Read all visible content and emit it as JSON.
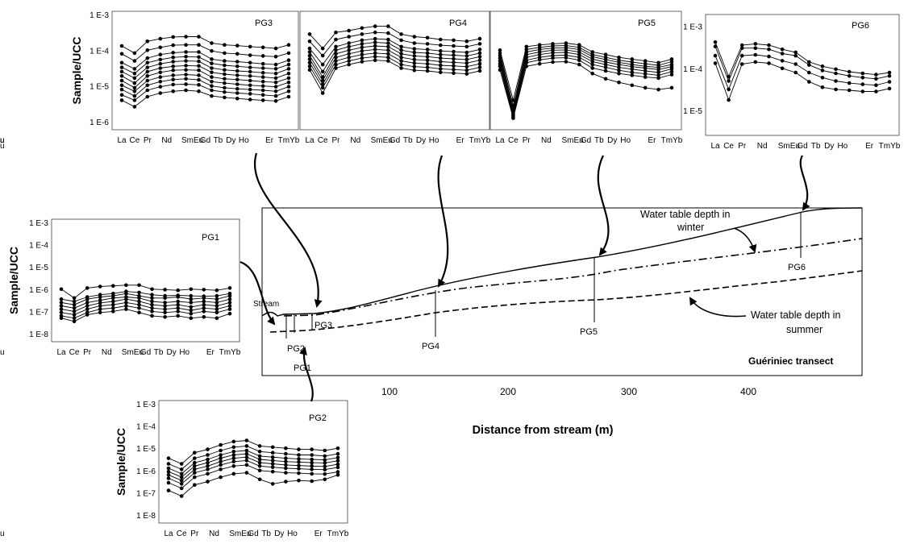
{
  "elements": [
    "La",
    "Ce",
    "Pr",
    "Nd",
    "Sm",
    "Eu",
    "Gd",
    "Tb",
    "Dy",
    "Ho",
    "Er",
    "Tm",
    "Yb",
    "Lu"
  ],
  "tick_labels": [
    "La",
    "Ce",
    "Pr",
    "Nd",
    "SmEu",
    "Gd",
    "Tb",
    "Dy",
    "Ho",
    "Er",
    "TmYb",
    "Lu"
  ],
  "y_axis_label": "Sample/UCC",
  "panels": [
    {
      "id": "PG3",
      "label": "PG3",
      "y_ticks": [
        "1 E-3",
        "1 E-4",
        "1 E-5",
        "1 E-6"
      ],
      "y_range_log10": [
        -6,
        -3
      ],
      "show_ylabel": true,
      "series": [
        [
          -3.88,
          -4.08,
          -3.75,
          -3.68,
          -3.63,
          -3.62,
          -3.62,
          -3.8,
          -3.85,
          -3.87,
          -3.9,
          -3.92,
          -3.95,
          -3.85
        ],
        [
          -4.1,
          -4.3,
          -4.0,
          -3.92,
          -3.86,
          -3.85,
          -3.85,
          -4.02,
          -4.08,
          -4.1,
          -4.14,
          -4.16,
          -4.18,
          -4.08
        ],
        [
          -4.35,
          -4.52,
          -4.22,
          -4.12,
          -4.07,
          -4.05,
          -4.05,
          -4.25,
          -4.3,
          -4.32,
          -4.35,
          -4.38,
          -4.4,
          -4.28
        ],
        [
          -4.48,
          -4.65,
          -4.35,
          -4.26,
          -4.2,
          -4.18,
          -4.19,
          -4.37,
          -4.42,
          -4.45,
          -4.48,
          -4.5,
          -4.52,
          -4.4
        ],
        [
          -4.6,
          -4.78,
          -4.48,
          -4.38,
          -4.32,
          -4.3,
          -4.31,
          -4.5,
          -4.55,
          -4.58,
          -4.6,
          -4.63,
          -4.65,
          -4.52
        ],
        [
          -4.72,
          -4.92,
          -4.6,
          -4.5,
          -4.45,
          -4.43,
          -4.44,
          -4.62,
          -4.67,
          -4.7,
          -4.72,
          -4.75,
          -4.78,
          -4.65
        ],
        [
          -4.85,
          -5.05,
          -4.72,
          -4.62,
          -4.56,
          -4.55,
          -4.56,
          -4.75,
          -4.8,
          -4.82,
          -4.85,
          -4.88,
          -4.9,
          -4.78
        ],
        [
          -4.98,
          -5.15,
          -4.85,
          -4.75,
          -4.7,
          -4.68,
          -4.7,
          -4.88,
          -4.92,
          -4.95,
          -4.98,
          -5.0,
          -5.02,
          -4.9
        ],
        [
          -5.1,
          -5.28,
          -4.98,
          -4.88,
          -4.82,
          -4.8,
          -4.83,
          -5.0,
          -5.05,
          -5.08,
          -5.1,
          -5.12,
          -5.15,
          -5.02
        ],
        [
          -5.25,
          -5.4,
          -5.12,
          -5.02,
          -4.96,
          -4.95,
          -4.97,
          -5.12,
          -5.17,
          -5.2,
          -5.22,
          -5.25,
          -5.28,
          -5.15
        ],
        [
          -5.4,
          -5.58,
          -5.3,
          -5.2,
          -5.15,
          -5.12,
          -5.15,
          -5.28,
          -5.32,
          -5.35,
          -5.38,
          -5.4,
          -5.42,
          -5.3
        ]
      ]
    },
    {
      "id": "PG4",
      "label": "PG4",
      "y_ticks": [],
      "y_range_log10": [
        -6,
        -3
      ],
      "show_ylabel": false,
      "series": [
        [
          -3.55,
          -3.95,
          -3.5,
          -3.45,
          -3.38,
          -3.33,
          -3.33,
          -3.55,
          -3.62,
          -3.65,
          -3.7,
          -3.72,
          -3.75,
          -3.68
        ],
        [
          -3.75,
          -4.15,
          -3.7,
          -3.62,
          -3.55,
          -3.5,
          -3.52,
          -3.72,
          -3.8,
          -3.82,
          -3.86,
          -3.88,
          -3.9,
          -3.82
        ],
        [
          -3.95,
          -4.4,
          -3.9,
          -3.8,
          -3.72,
          -3.68,
          -3.7,
          -3.9,
          -3.96,
          -3.98,
          -4.02,
          -4.04,
          -4.06,
          -3.98
        ],
        [
          -4.05,
          -4.6,
          -4.0,
          -3.9,
          -3.82,
          -3.78,
          -3.8,
          -4.0,
          -4.06,
          -4.08,
          -4.12,
          -4.14,
          -4.16,
          -4.08
        ],
        [
          -4.15,
          -4.75,
          -4.1,
          -4.0,
          -3.92,
          -3.88,
          -3.9,
          -4.1,
          -4.16,
          -4.18,
          -4.22,
          -4.24,
          -4.26,
          -4.18
        ],
        [
          -4.25,
          -4.85,
          -4.2,
          -4.1,
          -4.02,
          -3.98,
          -4.0,
          -4.2,
          -4.26,
          -4.28,
          -4.32,
          -4.34,
          -4.36,
          -4.28
        ],
        [
          -4.35,
          -4.95,
          -4.3,
          -4.2,
          -4.12,
          -4.08,
          -4.1,
          -4.3,
          -4.36,
          -4.38,
          -4.42,
          -4.44,
          -4.46,
          -4.38
        ],
        [
          -4.45,
          -5.05,
          -4.4,
          -4.3,
          -4.22,
          -4.18,
          -4.2,
          -4.4,
          -4.46,
          -4.48,
          -4.52,
          -4.54,
          -4.56,
          -4.48
        ],
        [
          -4.55,
          -5.2,
          -4.5,
          -4.4,
          -4.32,
          -4.28,
          -4.3,
          -4.5,
          -4.56,
          -4.58,
          -4.62,
          -4.64,
          -4.66,
          -4.58
        ]
      ]
    },
    {
      "id": "PG5",
      "label": "PG5",
      "y_ticks": [],
      "y_range_log10": [
        -6,
        -3
      ],
      "show_ylabel": false,
      "series": [
        [
          -4.0,
          -5.4,
          -3.9,
          -3.85,
          -3.82,
          -3.8,
          -3.85,
          -4.05,
          -4.12,
          -4.2,
          -4.25,
          -4.3,
          -4.35,
          -4.25
        ],
        [
          -4.08,
          -5.55,
          -3.98,
          -3.92,
          -3.88,
          -3.87,
          -3.92,
          -4.12,
          -4.2,
          -4.28,
          -4.33,
          -4.38,
          -4.42,
          -4.32
        ],
        [
          -4.15,
          -5.65,
          -4.05,
          -3.98,
          -3.94,
          -3.93,
          -3.98,
          -4.18,
          -4.26,
          -4.34,
          -4.4,
          -4.45,
          -4.48,
          -4.4
        ],
        [
          -4.22,
          -5.72,
          -4.12,
          -4.05,
          -4.0,
          -3.99,
          -4.05,
          -4.25,
          -4.33,
          -4.4,
          -4.46,
          -4.5,
          -4.54,
          -4.46
        ],
        [
          -4.3,
          -5.78,
          -4.2,
          -4.12,
          -4.07,
          -4.06,
          -4.12,
          -4.32,
          -4.4,
          -4.48,
          -4.53,
          -4.58,
          -4.62,
          -4.52
        ],
        [
          -4.38,
          -5.82,
          -4.28,
          -4.2,
          -4.15,
          -4.14,
          -4.2,
          -4.4,
          -4.48,
          -4.56,
          -4.62,
          -4.66,
          -4.7,
          -4.6
        ],
        [
          -4.45,
          -5.86,
          -4.35,
          -4.27,
          -4.22,
          -4.21,
          -4.28,
          -4.5,
          -4.58,
          -4.65,
          -4.7,
          -4.75,
          -4.78,
          -4.68
        ],
        [
          -4.55,
          -5.9,
          -4.45,
          -4.38,
          -4.33,
          -4.32,
          -4.4,
          -4.65,
          -4.8,
          -4.9,
          -4.98,
          -5.05,
          -5.1,
          -5.05
        ]
      ]
    },
    {
      "id": "PG6",
      "label": "PG6",
      "y_ticks": [
        "1 E-3",
        "1 E-4",
        "1 E-5"
      ],
      "y_range_log10": [
        -5.4,
        -2.8
      ],
      "show_ylabel": false,
      "series": [
        [
          -3.38,
          -4.2,
          -3.45,
          -3.42,
          -3.45,
          -3.55,
          -3.62,
          -3.85,
          -3.95,
          -4.02,
          -4.08,
          -4.12,
          -4.15,
          -4.1
        ],
        [
          -3.48,
          -4.3,
          -3.52,
          -3.52,
          -3.55,
          -3.65,
          -3.7,
          -3.92,
          -4.05,
          -4.12,
          -4.18,
          -4.22,
          -4.25,
          -4.18
        ],
        [
          -3.7,
          -4.5,
          -3.7,
          -3.68,
          -3.72,
          -3.82,
          -3.9,
          -4.1,
          -4.22,
          -4.3,
          -4.35,
          -4.38,
          -4.4,
          -4.32
        ],
        [
          -3.88,
          -4.75,
          -3.9,
          -3.85,
          -3.88,
          -4.0,
          -4.1,
          -4.32,
          -4.45,
          -4.5,
          -4.52,
          -4.55,
          -4.55,
          -4.48
        ]
      ]
    },
    {
      "id": "PG1",
      "label": "PG1",
      "y_ticks": [
        "1 E-3",
        "1 E-4",
        "1 E-5",
        "1 E-6",
        "1 E-7",
        "1 E-8"
      ],
      "y_range_log10": [
        -8,
        -3
      ],
      "show_ylabel": true,
      "series": [
        [
          -6.0,
          -6.4,
          -5.95,
          -5.88,
          -5.85,
          -5.82,
          -5.82,
          -6.0,
          -6.02,
          -6.05,
          -6.0,
          -6.02,
          -6.05,
          -5.95
        ],
        [
          -6.45,
          -6.55,
          -6.35,
          -6.25,
          -6.2,
          -6.1,
          -6.15,
          -6.25,
          -6.3,
          -6.28,
          -6.3,
          -6.32,
          -6.3,
          -6.2
        ],
        [
          -6.6,
          -6.7,
          -6.45,
          -6.35,
          -6.3,
          -6.2,
          -6.3,
          -6.4,
          -6.4,
          -6.35,
          -6.45,
          -6.4,
          -6.45,
          -6.3
        ],
        [
          -6.75,
          -6.85,
          -6.6,
          -6.5,
          -6.4,
          -6.35,
          -6.4,
          -6.55,
          -6.6,
          -6.55,
          -6.6,
          -6.55,
          -6.6,
          -6.45
        ],
        [
          -6.9,
          -7.0,
          -6.75,
          -6.62,
          -6.55,
          -6.45,
          -6.55,
          -6.7,
          -6.75,
          -6.7,
          -6.8,
          -6.7,
          -6.75,
          -6.6
        ],
        [
          -7.05,
          -7.15,
          -6.9,
          -6.75,
          -6.7,
          -6.6,
          -6.7,
          -6.85,
          -6.9,
          -6.85,
          -6.95,
          -6.85,
          -6.9,
          -6.75
        ],
        [
          -7.2,
          -7.3,
          -7.05,
          -6.9,
          -6.85,
          -6.75,
          -6.85,
          -7.0,
          -7.05,
          -7.0,
          -7.1,
          -7.0,
          -7.05,
          -6.9
        ],
        [
          -7.3,
          -7.45,
          -7.15,
          -7.05,
          -7.0,
          -6.9,
          -7.05,
          -7.2,
          -7.25,
          -7.2,
          -7.3,
          -7.25,
          -7.3,
          -7.1
        ]
      ]
    },
    {
      "id": "PG2",
      "label": "PG2",
      "y_ticks": [
        "1 E-3",
        "1 E-4",
        "1 E-5",
        "1 E-6",
        "1 E-7",
        "1 E-8"
      ],
      "y_range_log10": [
        -8,
        -3
      ],
      "show_ylabel": true,
      "series": [
        [
          -5.45,
          -5.7,
          -5.2,
          -5.05,
          -4.85,
          -4.7,
          -4.65,
          -4.9,
          -4.95,
          -5.0,
          -5.05,
          -5.05,
          -5.1,
          -5.0
        ],
        [
          -5.7,
          -5.95,
          -5.45,
          -5.3,
          -5.1,
          -4.95,
          -4.9,
          -5.15,
          -5.2,
          -5.25,
          -5.3,
          -5.3,
          -5.35,
          -5.25
        ],
        [
          -5.9,
          -6.15,
          -5.65,
          -5.5,
          -5.3,
          -5.15,
          -5.1,
          -5.35,
          -5.4,
          -5.45,
          -5.48,
          -5.5,
          -5.52,
          -5.42
        ],
        [
          -6.05,
          -6.3,
          -5.8,
          -5.65,
          -5.45,
          -5.3,
          -5.25,
          -5.5,
          -5.55,
          -5.6,
          -5.62,
          -5.65,
          -5.66,
          -5.56
        ],
        [
          -6.2,
          -6.45,
          -5.95,
          -5.8,
          -5.6,
          -5.45,
          -5.4,
          -5.65,
          -5.7,
          -5.75,
          -5.78,
          -5.8,
          -5.82,
          -5.72
        ],
        [
          -6.35,
          -6.6,
          -6.1,
          -5.95,
          -5.75,
          -5.6,
          -5.55,
          -5.8,
          -5.85,
          -5.9,
          -5.92,
          -5.95,
          -5.96,
          -5.86
        ],
        [
          -6.55,
          -6.8,
          -6.3,
          -6.15,
          -5.95,
          -5.8,
          -5.75,
          -6.0,
          -6.05,
          -6.1,
          -6.12,
          -6.15,
          -6.16,
          -6.06
        ],
        [
          -6.9,
          -7.15,
          -6.65,
          -6.5,
          -6.3,
          -6.15,
          -6.1,
          -6.4,
          -6.6,
          -6.5,
          -6.45,
          -6.48,
          -6.4,
          -6.2
        ]
      ]
    }
  ],
  "transect": {
    "title": "Guériniec transect",
    "x_axis_label": "Distance from stream (m)",
    "x_ticks": [
      "100",
      "200",
      "300",
      "400"
    ],
    "stream_label": "Stream",
    "winter_label_line1": "Water table depth in",
    "winter_label_line2": "winter",
    "summer_label_line1": "Water table depth in",
    "summer_label_line2": "summer",
    "piezometers": [
      "PG1",
      "PG2",
      "PG3",
      "PG4",
      "PG5",
      "PG6"
    ]
  }
}
